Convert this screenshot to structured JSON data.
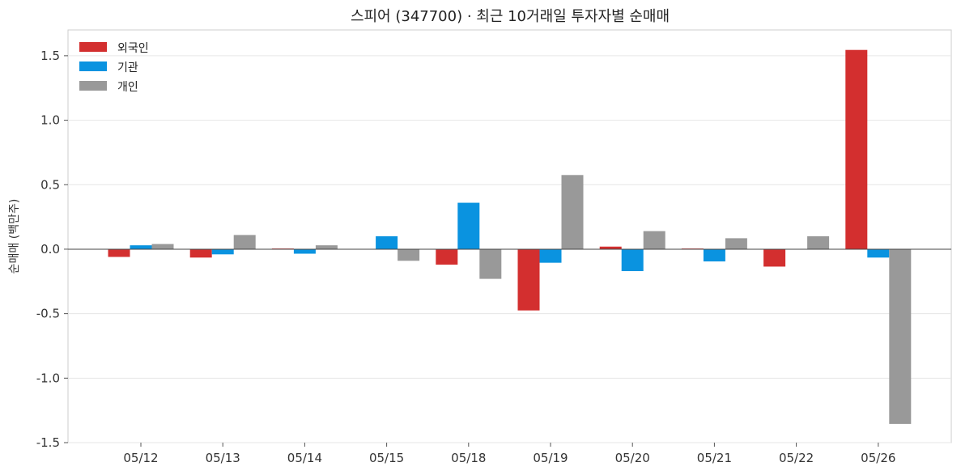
{
  "chart_data": {
    "type": "bar",
    "title": "스피어 (347700) · 최근 10거래일 투자자별 순매매",
    "xlabel": "",
    "ylabel": "순매매 (백만주)",
    "ylim": [
      -1.5,
      1.7
    ],
    "yticks": [
      "1.5",
      "1.0",
      "0.5",
      "0.0",
      "-0.5",
      "-1.0",
      "-1.5"
    ],
    "grid": "horizontal",
    "legend": "top-left",
    "categories": [
      "05/12",
      "05/13",
      "05/14",
      "05/15",
      "05/18",
      "05/19",
      "05/20",
      "05/21",
      "05/22",
      "05/26"
    ],
    "series": [
      {
        "name": "외국인",
        "color": "#d32f2f",
        "values": [
          -0.06,
          -0.065,
          0.005,
          0.0,
          -0.12,
          -0.475,
          0.02,
          0.005,
          -0.135,
          1.545
        ]
      },
      {
        "name": "기관",
        "color": "#0a93e0",
        "values": [
          0.03,
          -0.04,
          -0.035,
          0.1,
          0.36,
          -0.105,
          -0.17,
          -0.095,
          0.0,
          -0.065
        ]
      },
      {
        "name": "개인",
        "color": "#999999",
        "values": [
          0.04,
          0.11,
          0.03,
          -0.09,
          -0.23,
          0.575,
          0.14,
          0.085,
          0.1,
          -1.355
        ]
      }
    ]
  }
}
